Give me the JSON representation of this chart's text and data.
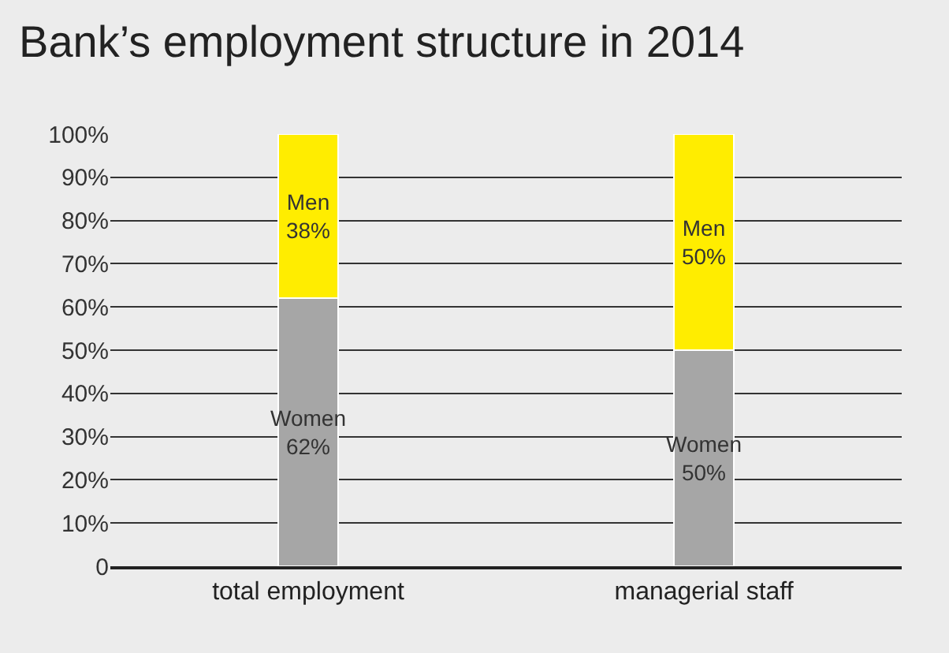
{
  "chart_data": {
    "type": "bar",
    "title": "Bank’s employment structure in 2014",
    "categories": [
      "total employment",
      "managerial staff"
    ],
    "stacked": true,
    "series": [
      {
        "name": "Women",
        "color": "#a6a6a6",
        "values": [
          62,
          50
        ],
        "value_labels": [
          "62%",
          "50%"
        ]
      },
      {
        "name": "Men",
        "color": "#ffed00",
        "values": [
          38,
          50
        ],
        "value_labels": [
          "38%",
          "50%"
        ]
      }
    ],
    "ylim": [
      0,
      100
    ],
    "yticks": [
      {
        "value": 0,
        "label": "0"
      },
      {
        "value": 10,
        "label": "10%"
      },
      {
        "value": 20,
        "label": "20%"
      },
      {
        "value": 30,
        "label": "30%"
      },
      {
        "value": 40,
        "label": "40%"
      },
      {
        "value": 50,
        "label": "50%"
      },
      {
        "value": 60,
        "label": "60%"
      },
      {
        "value": 70,
        "label": "70%"
      },
      {
        "value": 80,
        "label": "80%"
      },
      {
        "value": 90,
        "label": "90%"
      },
      {
        "value": 100,
        "label": "100%"
      }
    ],
    "grid": "y",
    "legend": false
  }
}
